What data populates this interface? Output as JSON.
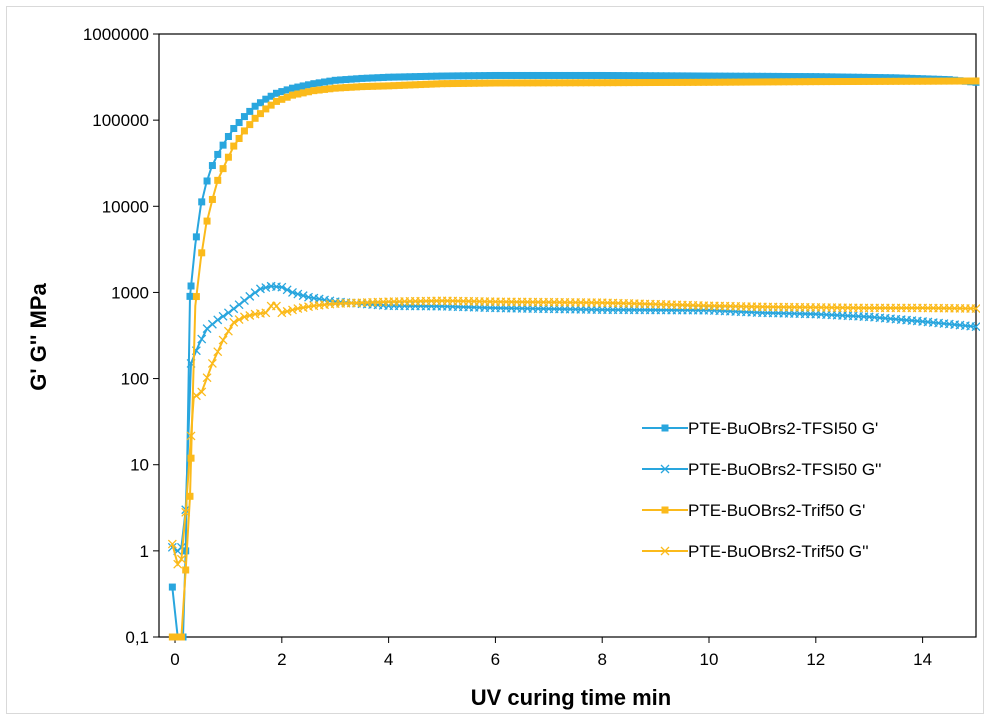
{
  "chart_data": {
    "type": "scatter",
    "title": "",
    "xlabel": "UV curing time min",
    "ylabel": "G' G'' MPa",
    "xlim": [
      -0.3,
      15
    ],
    "ylim": [
      0.1,
      1000000
    ],
    "y_scale": "log",
    "grid": false,
    "legend_position": "right-center",
    "x_ticks": [
      "0",
      "2",
      "4",
      "6",
      "8",
      "10",
      "12",
      "14"
    ],
    "x_tick_values": [
      0,
      2,
      4,
      6,
      8,
      10,
      12,
      14
    ],
    "y_ticks": [
      "0,1",
      "1",
      "10",
      "100",
      "1000",
      "10000",
      "100000",
      "1000000"
    ],
    "y_tick_values": [
      0.1,
      1,
      10,
      100,
      1000,
      10000,
      100000,
      1000000
    ],
    "series": [
      {
        "name": "PTE-BuOBrs2-TFSI50 G'",
        "color": "#29A6DE",
        "marker": "square",
        "points": [
          [
            -0.05,
            0.38
          ],
          [
            0.05,
            0.1
          ],
          [
            0.1,
            0.1
          ],
          [
            0.15,
            0.1
          ],
          [
            0.2,
            1.0
          ],
          [
            0.28,
            900
          ],
          [
            0.38,
            3600
          ],
          [
            0.48,
            10000
          ],
          [
            0.58,
            18000
          ],
          [
            0.68,
            28000
          ],
          [
            0.8,
            40000
          ],
          [
            0.95,
            58000
          ],
          [
            1.1,
            80000
          ],
          [
            1.3,
            110000
          ],
          [
            1.5,
            145000
          ],
          [
            1.7,
            175000
          ],
          [
            1.9,
            205000
          ],
          [
            2.2,
            235000
          ],
          [
            2.6,
            265000
          ],
          [
            3.0,
            290000
          ],
          [
            3.5,
            305000
          ],
          [
            4.0,
            315000
          ],
          [
            5.0,
            325000
          ],
          [
            6.0,
            330000
          ],
          [
            8.0,
            330000
          ],
          [
            10.0,
            325000
          ],
          [
            12.0,
            320000
          ],
          [
            13.5,
            310000
          ],
          [
            14.5,
            295000
          ],
          [
            15.0,
            275000
          ]
        ]
      },
      {
        "name": "PTE-BuOBrs2-TFSI50 G''",
        "color": "#29A6DE",
        "marker": "x",
        "points": [
          [
            -0.05,
            1.1
          ],
          [
            0.05,
            1.0
          ],
          [
            0.12,
            1.1
          ],
          [
            0.2,
            3.0
          ],
          [
            0.3,
            150
          ],
          [
            0.45,
            250
          ],
          [
            0.6,
            380
          ],
          [
            0.8,
            480
          ],
          [
            1.0,
            580
          ],
          [
            1.2,
            720
          ],
          [
            1.4,
            900
          ],
          [
            1.6,
            1100
          ],
          [
            1.8,
            1180
          ],
          [
            2.0,
            1150
          ],
          [
            2.2,
            1000
          ],
          [
            2.5,
            880
          ],
          [
            3.0,
            780
          ],
          [
            4.0,
            700
          ],
          [
            5.0,
            690
          ],
          [
            6.0,
            660
          ],
          [
            8.0,
            630
          ],
          [
            10.0,
            620
          ],
          [
            11.0,
            580
          ],
          [
            12.0,
            560
          ],
          [
            13.0,
            520
          ],
          [
            14.0,
            460
          ],
          [
            15.0,
            400
          ]
        ]
      },
      {
        "name": "PTE-BuOBrs2-Trif50 G'",
        "color": "#FBBA1B",
        "marker": "square",
        "points": [
          [
            -0.05,
            0.1
          ],
          [
            0.05,
            0.1
          ],
          [
            0.12,
            0.1
          ],
          [
            0.2,
            0.6
          ],
          [
            0.28,
            4.3
          ],
          [
            0.38,
            700
          ],
          [
            0.48,
            2400
          ],
          [
            0.58,
            6000
          ],
          [
            0.7,
            12000
          ],
          [
            0.8,
            20000
          ],
          [
            0.95,
            32000
          ],
          [
            1.1,
            50000
          ],
          [
            1.3,
            75000
          ],
          [
            1.5,
            105000
          ],
          [
            1.7,
            135000
          ],
          [
            1.9,
            165000
          ],
          [
            2.2,
            195000
          ],
          [
            2.6,
            220000
          ],
          [
            3.0,
            235000
          ],
          [
            3.5,
            245000
          ],
          [
            4.0,
            250000
          ],
          [
            5.0,
            265000
          ],
          [
            6.0,
            270000
          ],
          [
            8.0,
            272000
          ],
          [
            10.0,
            275000
          ],
          [
            12.0,
            280000
          ],
          [
            14.0,
            283000
          ],
          [
            15.0,
            285000
          ]
        ]
      },
      {
        "name": "PTE-BuOBrs2-Trif50 G''",
        "color": "#FBBA1B",
        "marker": "x",
        "points": [
          [
            -0.05,
            1.2
          ],
          [
            0.05,
            0.7
          ],
          [
            0.12,
            0.8
          ],
          [
            0.2,
            2.8
          ],
          [
            0.35,
            60
          ],
          [
            0.5,
            70
          ],
          [
            0.7,
            150
          ],
          [
            0.9,
            280
          ],
          [
            1.1,
            450
          ],
          [
            1.3,
            520
          ],
          [
            1.5,
            560
          ],
          [
            1.7,
            580
          ],
          [
            1.85,
            760
          ],
          [
            2.0,
            580
          ],
          [
            2.3,
            650
          ],
          [
            2.6,
            700
          ],
          [
            3.0,
            740
          ],
          [
            3.5,
            760
          ],
          [
            4.0,
            780
          ],
          [
            5.0,
            800
          ],
          [
            6.0,
            780
          ],
          [
            7.0,
            770
          ],
          [
            8.0,
            760
          ],
          [
            9.0,
            730
          ],
          [
            10.0,
            700
          ],
          [
            11.0,
            680
          ],
          [
            12.0,
            670
          ],
          [
            13.0,
            660
          ],
          [
            14.0,
            660
          ],
          [
            15.0,
            650
          ]
        ]
      }
    ]
  }
}
